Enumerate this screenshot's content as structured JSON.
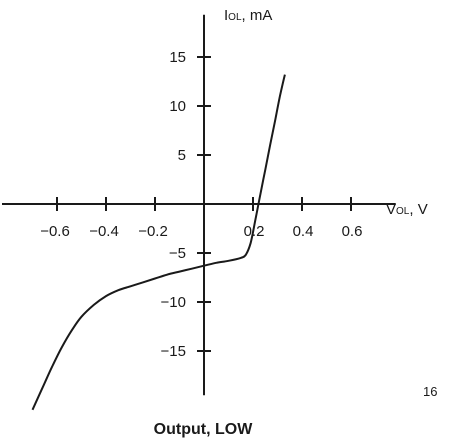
{
  "chart_data": {
    "type": "line",
    "title": "",
    "caption": "Output, LOW",
    "figure_number": "16",
    "xlabel": {
      "symbol": "V",
      "sub": "OL",
      "unit": ", V"
    },
    "ylabel": {
      "symbol": "I",
      "sub": "OL",
      "unit": ", mA"
    },
    "xlim": [
      -0.8,
      0.75
    ],
    "ylim": [
      -19,
      19
    ],
    "x_ticks": [
      -0.6,
      -0.4,
      -0.2,
      0.2,
      0.4,
      0.6
    ],
    "x_tick_labels": [
      "−0.6",
      "−0.4",
      "−0.2",
      "0.2",
      "0.4",
      "0.6"
    ],
    "y_ticks": [
      15,
      10,
      5,
      -5,
      -10,
      -15
    ],
    "y_tick_labels": [
      "15",
      "10",
      "5",
      "−5",
      "−10",
      "−15"
    ],
    "grid": false,
    "series": [
      {
        "x": [
          -0.7,
          -0.66,
          -0.62,
          -0.58,
          -0.54,
          -0.5,
          -0.45,
          -0.4,
          -0.35,
          -0.3,
          -0.25,
          -0.2,
          -0.15,
          -0.1,
          -0.05,
          0.0,
          0.05,
          0.1,
          0.15,
          0.17,
          0.19,
          0.21,
          0.23,
          0.25,
          0.27,
          0.29,
          0.31,
          0.33
        ],
        "y": [
          -21.0,
          -18.8,
          -16.6,
          -14.6,
          -12.9,
          -11.5,
          -10.3,
          -9.4,
          -8.8,
          -8.4,
          -8.0,
          -7.6,
          -7.2,
          -6.9,
          -6.6,
          -6.3,
          -6.0,
          -5.8,
          -5.5,
          -5.2,
          -4.0,
          -1.6,
          1.0,
          3.5,
          6.0,
          8.5,
          11.0,
          13.2
        ]
      }
    ]
  }
}
